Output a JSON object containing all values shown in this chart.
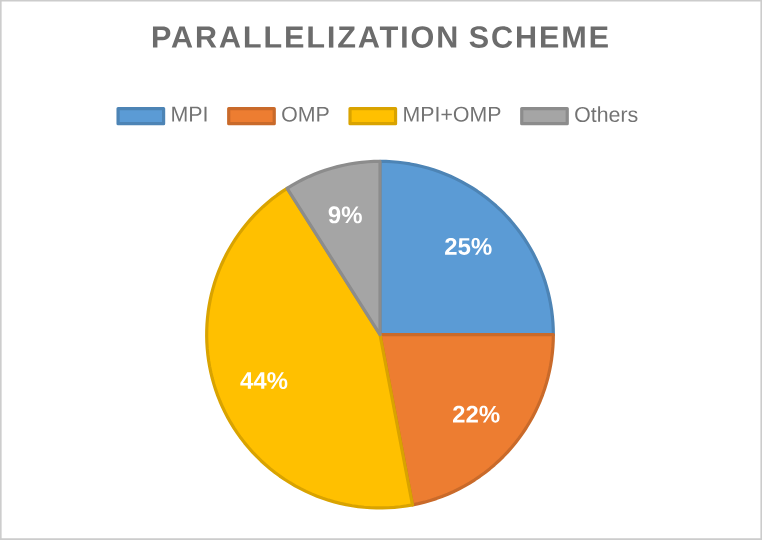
{
  "chart_data": {
    "type": "pie",
    "title": "PARALLELIZATION SCHEME",
    "categories": [
      "MPI",
      "OMP",
      "MPI+OMP",
      "Others"
    ],
    "values": [
      25,
      22,
      44,
      9
    ],
    "colors": [
      "#5b9bd5",
      "#ed7d31",
      "#ffc000",
      "#a5a5a5"
    ],
    "value_labels": [
      "25%",
      "22%",
      "44%",
      "9%"
    ],
    "legend": "top"
  }
}
